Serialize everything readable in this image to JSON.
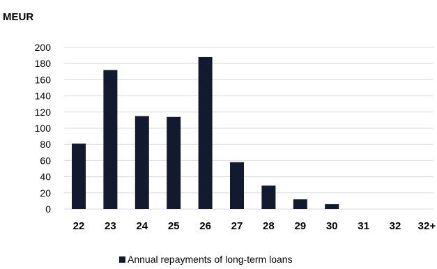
{
  "chart_data": {
    "type": "bar",
    "unit_label": "MEUR",
    "categories": [
      "22",
      "23",
      "24",
      "25",
      "26",
      "27",
      "28",
      "29",
      "30",
      "31",
      "32",
      "32+"
    ],
    "series": [
      {
        "name": "Annual repayments of long-term loans",
        "color": "#111a2e",
        "values": [
          81,
          172,
          115,
          114,
          188,
          58,
          29,
          12,
          6,
          0,
          0,
          0
        ]
      }
    ],
    "yticks": [
      "0",
      "20",
      "40",
      "60",
      "80",
      "100",
      "120",
      "140",
      "160",
      "180",
      "200"
    ],
    "ylim": [
      0,
      200
    ],
    "grid": true,
    "grid_color": "#d9d9d9",
    "legend_position": "bottom-center"
  }
}
